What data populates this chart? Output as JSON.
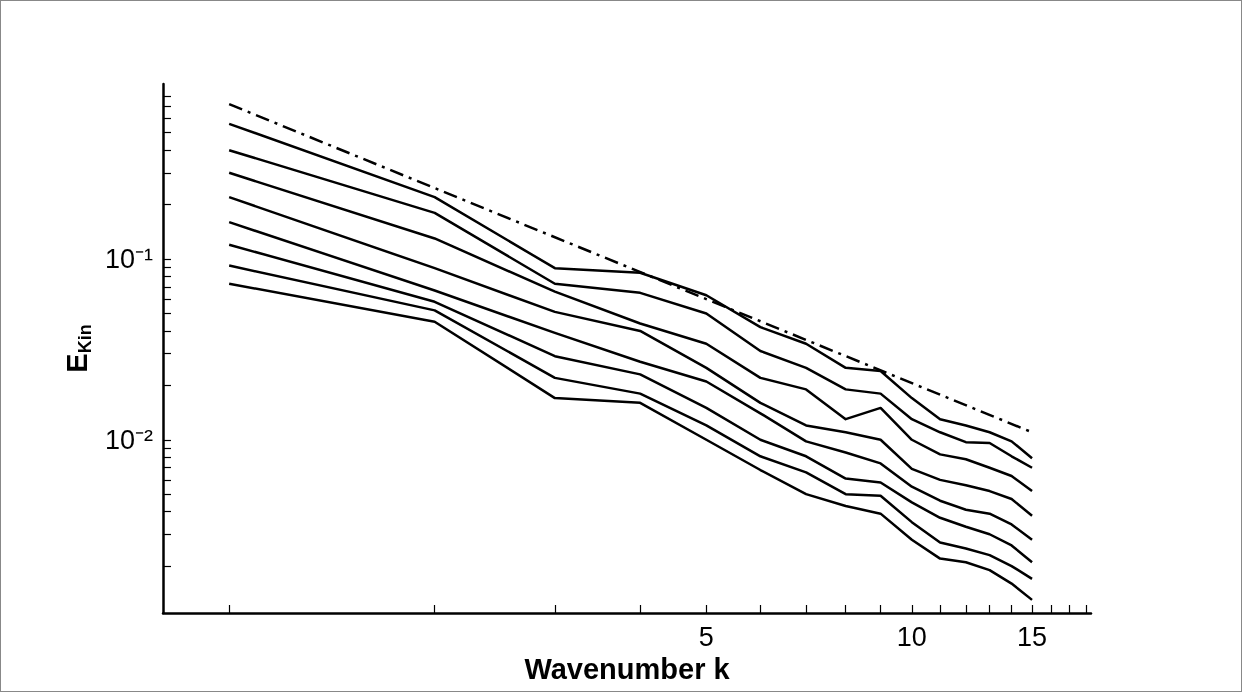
{
  "chart_data": {
    "type": "line",
    "xlabel": "Wavenumber k",
    "ylabel": "E$_{Kin}$",
    "log": "xy",
    "marker": "none",
    "line_style": "solid",
    "x": [
      1,
      2,
      3,
      4,
      5,
      6,
      7,
      8,
      9,
      10,
      11,
      12,
      13,
      14,
      15
    ],
    "xlim": [
      0.8,
      18.3
    ],
    "ylim": [
      0.0011,
      0.93
    ],
    "xticks": [
      {
        "value": 1,
        "label": null
      },
      {
        "value": 2,
        "label": null
      },
      {
        "value": 3,
        "label": null
      },
      {
        "value": 4,
        "label": null
      },
      5,
      {
        "value": 6,
        "label": null
      },
      {
        "value": 7,
        "label": null
      },
      {
        "value": 8,
        "label": null
      },
      {
        "value": 9,
        "label": null
      },
      10,
      {
        "value": 11,
        "label": null
      },
      {
        "value": 12,
        "label": null
      },
      {
        "value": 13,
        "label": null
      },
      {
        "value": 14,
        "label": null
      },
      15,
      {
        "value": 16,
        "label": null
      },
      {
        "value": 17,
        "label": null
      },
      {
        "value": 18,
        "label": null
      }
    ],
    "yticks": [
      {
        "value": 0.002,
        "label": null
      },
      {
        "value": 0.003,
        "label": null
      },
      {
        "value": 0.004,
        "label": null
      },
      {
        "value": 0.005,
        "label": null
      },
      {
        "value": 0.006,
        "label": null
      },
      {
        "value": 0.007,
        "label": null
      },
      {
        "value": 0.008,
        "label": null
      },
      {
        "value": 0.009,
        "label": null
      },
      {
        "value": 0.01,
        "label": "10⁻²"
      },
      {
        "value": 0.02,
        "label": null
      },
      {
        "value": 0.03,
        "label": null
      },
      {
        "value": 0.04,
        "label": null
      },
      {
        "value": 0.05,
        "label": null
      },
      {
        "value": 0.06,
        "label": null
      },
      {
        "value": 0.07,
        "label": null
      },
      {
        "value": 0.08,
        "label": null
      },
      {
        "value": 0.09,
        "label": null
      },
      {
        "value": 0.1,
        "label": "10⁻¹"
      },
      {
        "value": 0.2,
        "label": null
      },
      {
        "value": 0.3,
        "label": null
      },
      {
        "value": 0.4,
        "label": null
      },
      {
        "value": 0.5,
        "label": null
      },
      {
        "value": 0.6,
        "label": null
      },
      {
        "value": 0.7,
        "label": null
      },
      {
        "value": 0.8,
        "label": null
      }
    ],
    "series": [
      {
        "color": "#000000",
        "line_style": "dashdot",
        "x": [
          1,
          15
        ],
        "values": [
          0.72,
          0.011
        ]
      },
      {
        "color": "#000000",
        "values": [
          0.56,
          0.22,
          0.089,
          0.084,
          0.063,
          0.042,
          0.034,
          0.025,
          0.024,
          0.017,
          0.013,
          0.012,
          0.011,
          0.0098,
          0.0079
        ]
      },
      {
        "color": "#000000",
        "values": [
          0.4,
          0.18,
          0.073,
          0.065,
          0.05,
          0.031,
          0.025,
          0.019,
          0.018,
          0.013,
          0.011,
          0.0097,
          0.0096,
          0.0081,
          0.007
        ]
      },
      {
        "color": "#000000",
        "values": [
          0.3,
          0.13,
          0.066,
          0.044,
          0.034,
          0.022,
          0.019,
          0.013,
          0.015,
          0.01,
          0.0083,
          0.0078,
          0.007,
          0.0063,
          0.0052
        ]
      },
      {
        "color": "#000000",
        "values": [
          0.22,
          0.089,
          0.051,
          0.04,
          0.025,
          0.016,
          0.012,
          0.011,
          0.01,
          0.0069,
          0.006,
          0.0056,
          0.0052,
          0.0047,
          0.0038
        ]
      },
      {
        "color": "#000000",
        "values": [
          0.16,
          0.067,
          0.039,
          0.027,
          0.021,
          0.014,
          0.0098,
          0.0085,
          0.0074,
          0.0055,
          0.0046,
          0.0041,
          0.0039,
          0.0034,
          0.0028
        ]
      },
      {
        "color": "#000000",
        "values": [
          0.12,
          0.058,
          0.029,
          0.023,
          0.015,
          0.01,
          0.0081,
          0.0061,
          0.0058,
          0.0045,
          0.0037,
          0.0033,
          0.003,
          0.0026,
          0.0021
        ]
      },
      {
        "color": "#000000",
        "values": [
          0.092,
          0.052,
          0.022,
          0.018,
          0.012,
          0.0081,
          0.0066,
          0.005,
          0.0049,
          0.0035,
          0.0027,
          0.0025,
          0.0023,
          0.002,
          0.0017
        ]
      },
      {
        "color": "#000000",
        "values": [
          0.073,
          0.045,
          0.017,
          0.016,
          0.01,
          0.0068,
          0.005,
          0.0043,
          0.0039,
          0.0028,
          0.0022,
          0.0021,
          0.0019,
          0.0016,
          0.0013
        ]
      }
    ]
  }
}
